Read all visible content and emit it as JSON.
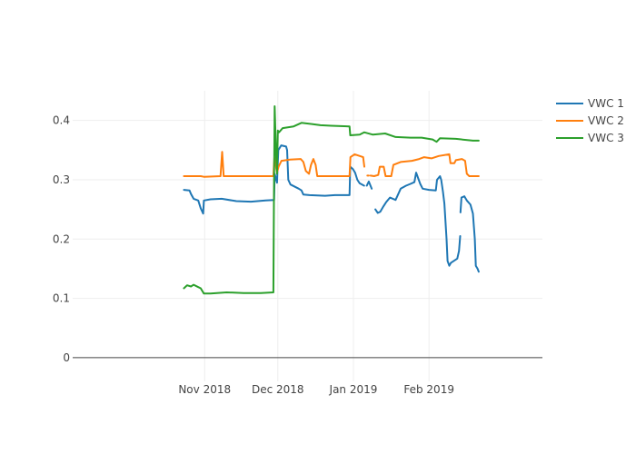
{
  "chart_data": {
    "type": "line",
    "title": "",
    "xlabel": "",
    "ylabel": "",
    "x_units": "days since 2018-10-01",
    "xlim": [
      -23.1,
      169.5
    ],
    "ylim": [
      -0.04,
      0.45
    ],
    "y_ticks": [
      0,
      0.1,
      0.2,
      0.3,
      0.4
    ],
    "y_tick_labels": [
      "0",
      "0.1",
      "0.2",
      "0.3",
      "0.4"
    ],
    "x_ticks": [
      31,
      61,
      92,
      123
    ],
    "x_tick_labels": [
      "Nov 2018",
      "Dec 2018",
      "Jan 2019",
      "Feb 2019"
    ],
    "grid": true,
    "legend_position": "top-right",
    "series": [
      {
        "name": "VWC 1",
        "color": "#1f77b4",
        "points": [
          [
            22.5,
            0.283
          ],
          [
            24.8,
            0.282
          ],
          [
            25.4,
            0.276
          ],
          [
            26.5,
            0.268
          ],
          [
            28.4,
            0.265
          ],
          [
            29.4,
            0.252
          ],
          [
            30.4,
            0.243
          ],
          [
            30.7,
            0.265
          ],
          [
            33.4,
            0.267
          ],
          [
            38,
            0.268
          ],
          [
            44,
            0.264
          ],
          [
            50,
            0.263
          ],
          [
            56,
            0.265
          ],
          [
            59.5,
            0.266
          ],
          [
            59.7,
            0.31
          ],
          [
            60.7,
            0.295
          ],
          [
            61.2,
            0.35
          ],
          [
            62.4,
            0.358
          ],
          [
            64.4,
            0.356
          ],
          [
            64.8,
            0.35
          ],
          [
            65.3,
            0.3
          ],
          [
            66.2,
            0.292
          ],
          [
            69.6,
            0.285
          ],
          [
            70.7,
            0.282
          ],
          [
            71.5,
            0.275
          ],
          [
            74,
            0.274
          ],
          [
            80.4,
            0.273
          ],
          [
            84.4,
            0.274
          ],
          [
            90.4,
            0.274
          ],
          [
            90.7,
            0.322
          ],
          [
            91.8,
            0.318
          ],
          [
            92.7,
            0.312
          ],
          [
            93.6,
            0.3
          ],
          [
            94.6,
            0.294
          ],
          [
            96.4,
            0.29
          ],
          [
            96.6,
            null
          ],
          [
            97.5,
            0.29
          ],
          [
            98.3,
            0.297
          ],
          [
            99.5,
            0.285
          ],
          [
            99.7,
            null
          ],
          [
            100.3,
            0.258
          ],
          [
            100.5,
            null
          ],
          [
            101,
            0.25
          ],
          [
            102,
            0.244
          ],
          [
            103,
            0.246
          ],
          [
            104.3,
            0.255
          ],
          [
            105.4,
            0.262
          ],
          [
            107,
            0.27
          ],
          [
            109.3,
            0.266
          ],
          [
            111.4,
            0.285
          ],
          [
            113.6,
            0.29
          ],
          [
            115.4,
            0.293
          ],
          [
            117,
            0.296
          ],
          [
            117.7,
            0.312
          ],
          [
            119.4,
            0.293
          ],
          [
            120.4,
            0.285
          ],
          [
            123,
            0.283
          ],
          [
            125.8,
            0.282
          ],
          [
            126.3,
            0.3
          ],
          [
            127.5,
            0.306
          ],
          [
            128,
            0.3
          ],
          [
            128.7,
            0.28
          ],
          [
            129.3,
            0.26
          ],
          [
            130.2,
            0.2
          ],
          [
            130.6,
            0.163
          ],
          [
            131.3,
            0.155
          ],
          [
            132,
            0.16
          ],
          [
            134.6,
            0.167
          ],
          [
            135.3,
            0.18
          ],
          [
            135.8,
            0.205
          ],
          [
            135.9,
            null
          ],
          [
            135.9,
            0.245
          ],
          [
            136.3,
            0.27
          ],
          [
            137.5,
            0.272
          ],
          [
            138.5,
            0.265
          ],
          [
            140,
            0.258
          ],
          [
            141,
            0.243
          ],
          [
            141.8,
            0.2
          ],
          [
            142.2,
            0.155
          ],
          [
            142.9,
            0.15
          ],
          [
            143.4,
            0.145
          ]
        ]
      },
      {
        "name": "VWC 2",
        "color": "#ff7f0e",
        "points": [
          [
            22.5,
            0.306
          ],
          [
            29.4,
            0.306
          ],
          [
            30.7,
            0.305
          ],
          [
            37.5,
            0.306
          ],
          [
            38.2,
            0.347
          ],
          [
            38.8,
            0.306
          ],
          [
            47,
            0.306
          ],
          [
            59.2,
            0.306
          ],
          [
            59.6,
            0.338
          ],
          [
            60.2,
            0.323
          ],
          [
            60.7,
            0.312
          ],
          [
            61.3,
            0.322
          ],
          [
            62.5,
            0.332
          ],
          [
            66,
            0.334
          ],
          [
            70.4,
            0.335
          ],
          [
            71.5,
            0.33
          ],
          [
            72.5,
            0.315
          ],
          [
            73.8,
            0.31
          ],
          [
            74.6,
            0.325
          ],
          [
            75.6,
            0.335
          ],
          [
            76.5,
            0.325
          ],
          [
            77.2,
            0.306
          ],
          [
            82,
            0.306
          ],
          [
            90.4,
            0.306
          ],
          [
            90.8,
            0.338
          ],
          [
            92.5,
            0.343
          ],
          [
            96,
            0.338
          ],
          [
            96.5,
            0.322
          ],
          [
            96.6,
            null
          ],
          [
            97.7,
            0.307
          ],
          [
            98.3,
            0.307
          ],
          [
            98.4,
            null
          ],
          [
            99,
            0.307
          ],
          [
            100.5,
            0.306
          ],
          [
            102.2,
            0.308
          ],
          [
            102.8,
            0.322
          ],
          [
            104.4,
            0.322
          ],
          [
            105.2,
            0.306
          ],
          [
            107.5,
            0.306
          ],
          [
            108.4,
            0.325
          ],
          [
            111.4,
            0.33
          ],
          [
            116,
            0.332
          ],
          [
            119,
            0.335
          ],
          [
            121,
            0.338
          ],
          [
            124,
            0.336
          ],
          [
            127,
            0.34
          ],
          [
            131.3,
            0.343
          ],
          [
            131.8,
            0.328
          ],
          [
            133.4,
            0.328
          ],
          [
            134,
            0.333
          ],
          [
            136.5,
            0.335
          ],
          [
            137.8,
            0.332
          ],
          [
            138.5,
            0.31
          ],
          [
            139.5,
            0.306
          ],
          [
            143.4,
            0.306
          ]
        ]
      },
      {
        "name": "VWC 3",
        "color": "#2ca02c",
        "points": [
          [
            22.5,
            0.117
          ],
          [
            23.8,
            0.122
          ],
          [
            25.4,
            0.12
          ],
          [
            26.5,
            0.123
          ],
          [
            28.4,
            0.119
          ],
          [
            29.4,
            0.117
          ],
          [
            30.7,
            0.108
          ],
          [
            33.4,
            0.108
          ],
          [
            40,
            0.11
          ],
          [
            47,
            0.109
          ],
          [
            54,
            0.109
          ],
          [
            59.2,
            0.11
          ],
          [
            59.4,
            0.27
          ],
          [
            59.7,
            0.424
          ],
          [
            60.3,
            0.34
          ],
          [
            60.7,
            0.31
          ],
          [
            61,
            0.383
          ],
          [
            61.5,
            0.38
          ],
          [
            63,
            0.387
          ],
          [
            67.5,
            0.39
          ],
          [
            70.7,
            0.396
          ],
          [
            75,
            0.394
          ],
          [
            78.5,
            0.392
          ],
          [
            83,
            0.391
          ],
          [
            90.4,
            0.39
          ],
          [
            90.7,
            0.375
          ],
          [
            94.6,
            0.376
          ],
          [
            96.4,
            0.38
          ],
          [
            100,
            0.376
          ],
          [
            105,
            0.378
          ],
          [
            109.3,
            0.372
          ],
          [
            115.4,
            0.371
          ],
          [
            120,
            0.371
          ],
          [
            124.5,
            0.368
          ],
          [
            126.1,
            0.364
          ],
          [
            127.5,
            0.37
          ],
          [
            134,
            0.369
          ],
          [
            141,
            0.366
          ],
          [
            143.4,
            0.366
          ]
        ]
      }
    ]
  }
}
